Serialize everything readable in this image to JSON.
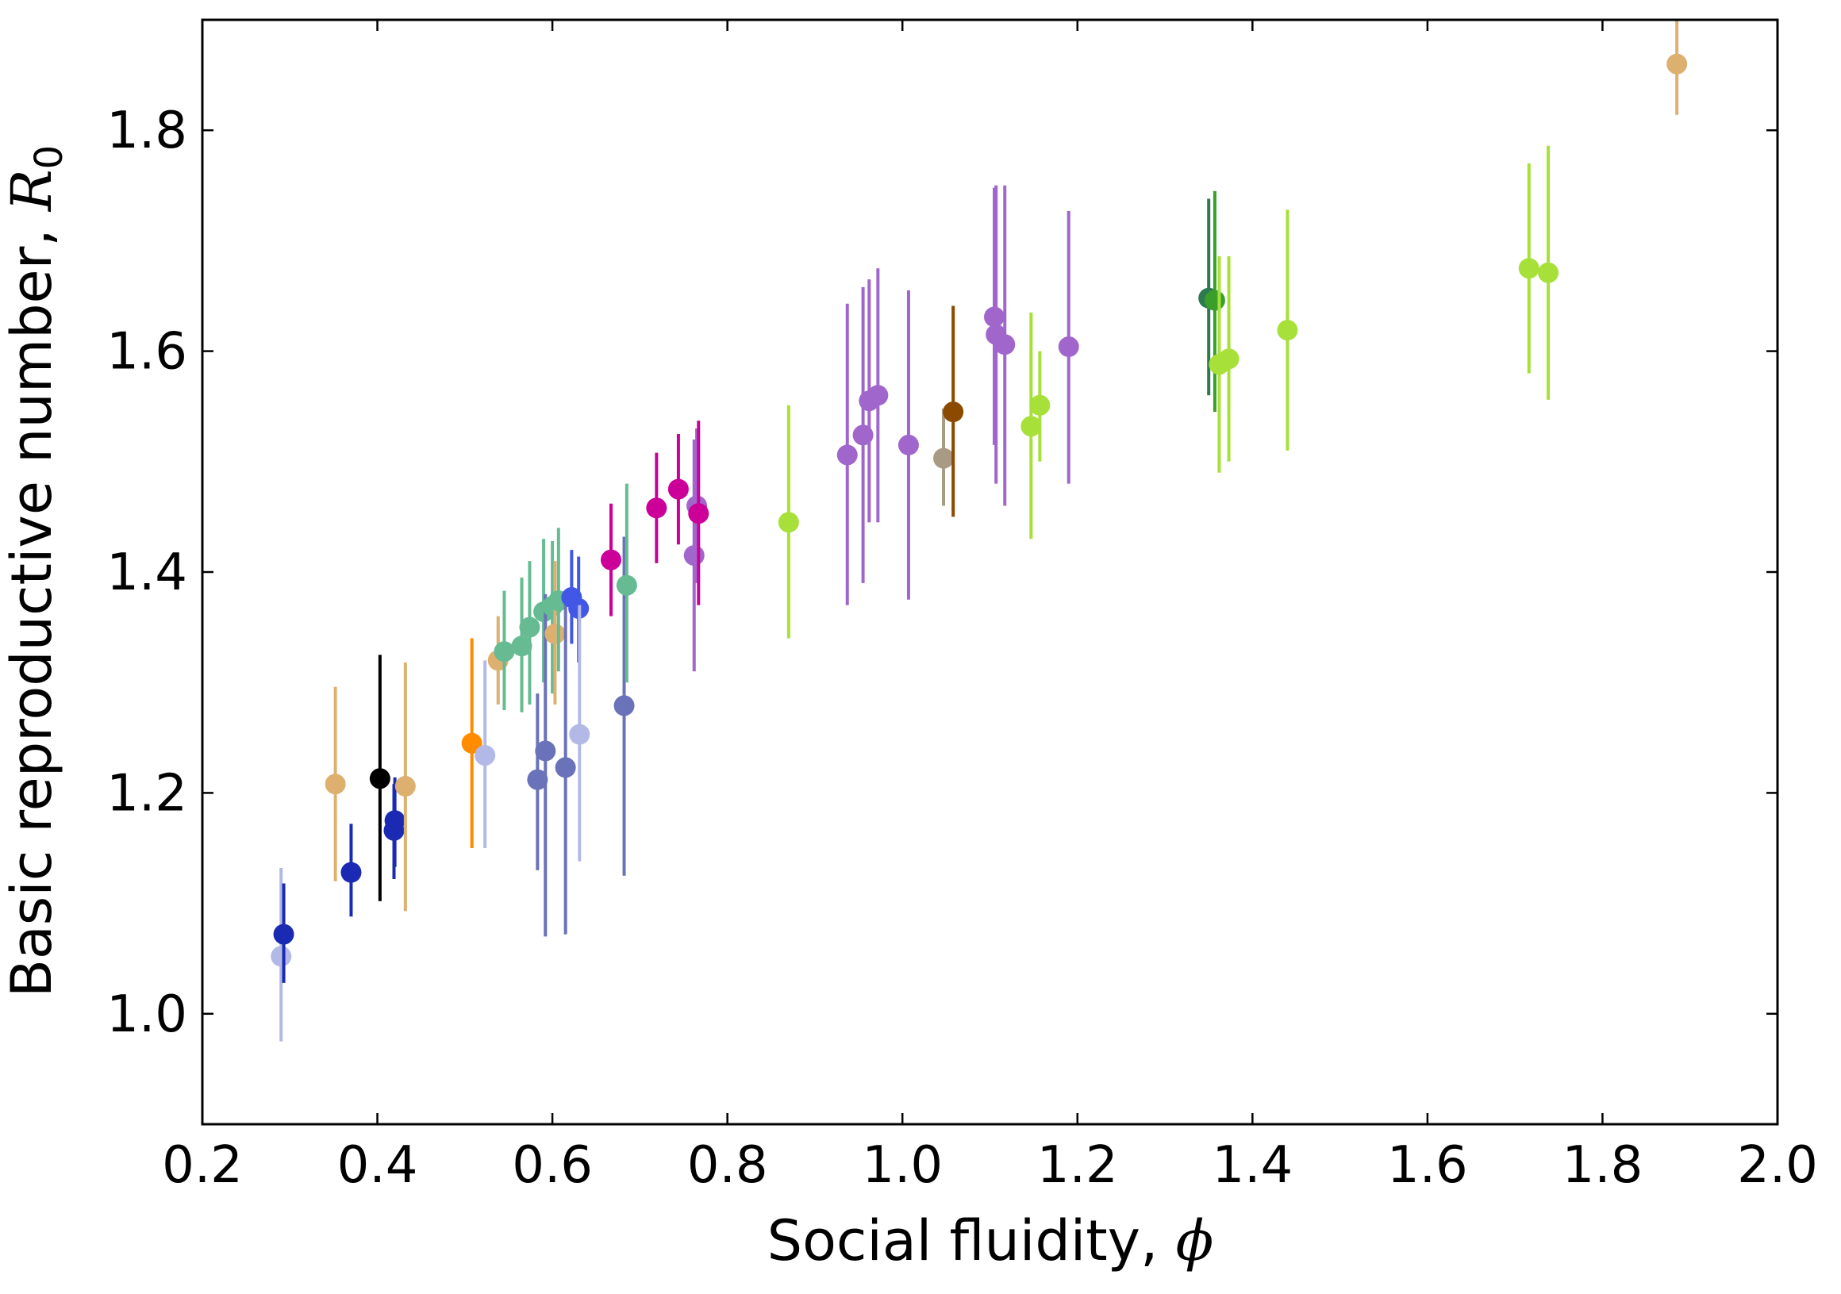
{
  "chart_data": {
    "type": "scatter",
    "xlabel": "Social fluidity, ",
    "xlabel_symbol": "ϕ",
    "ylabel": "Basic reproductive number, ",
    "ylabel_symbol": "R",
    "ylabel_subscript": "0",
    "xlim": [
      0.2,
      2.0
    ],
    "ylim": [
      0.9,
      1.9
    ],
    "xticks": [
      "0.2",
      "0.4",
      "0.6",
      "0.8",
      "1.0",
      "1.2",
      "1.4",
      "1.6",
      "1.8",
      "2.0"
    ],
    "yticks": [
      "1.0",
      "1.2",
      "1.4",
      "1.6",
      "1.8"
    ],
    "grid": false,
    "legend": "none",
    "error_bars": "vertical",
    "points": [
      {
        "x": 0.29,
        "y": 1.052,
        "lo": 0.975,
        "hi": 1.132,
        "color": "#b3b9e6"
      },
      {
        "x": 0.293,
        "y": 1.072,
        "lo": 1.028,
        "hi": 1.118,
        "color": "#1a2ab2"
      },
      {
        "x": 0.352,
        "y": 1.208,
        "lo": 1.12,
        "hi": 1.296,
        "color": "#deb070"
      },
      {
        "x": 0.37,
        "y": 1.128,
        "lo": 1.088,
        "hi": 1.172,
        "color": "#1a2ab2"
      },
      {
        "x": 0.403,
        "y": 1.213,
        "lo": 1.102,
        "hi": 1.325,
        "color": "#000000"
      },
      {
        "x": 0.42,
        "y": 1.175,
        "lo": 1.133,
        "hi": 1.214,
        "color": "#1a2ab2"
      },
      {
        "x": 0.419,
        "y": 1.166,
        "lo": 1.122,
        "hi": 1.208,
        "color": "#1a2ab2"
      },
      {
        "x": 0.432,
        "y": 1.206,
        "lo": 1.093,
        "hi": 1.318,
        "color": "#deb070"
      },
      {
        "x": 0.508,
        "y": 1.245,
        "lo": 1.15,
        "hi": 1.34,
        "color": "#ff8c00"
      },
      {
        "x": 0.523,
        "y": 1.234,
        "lo": 1.15,
        "hi": 1.32,
        "color": "#b3b9e6"
      },
      {
        "x": 0.538,
        "y": 1.32,
        "lo": 1.28,
        "hi": 1.36,
        "color": "#deb070"
      },
      {
        "x": 0.545,
        "y": 1.328,
        "lo": 1.275,
        "hi": 1.383,
        "color": "#66bb93"
      },
      {
        "x": 0.565,
        "y": 1.333,
        "lo": 1.273,
        "hi": 1.395,
        "color": "#66bb93"
      },
      {
        "x": 0.574,
        "y": 1.35,
        "lo": 1.28,
        "hi": 1.41,
        "color": "#66bb93"
      },
      {
        "x": 0.583,
        "y": 1.212,
        "lo": 1.13,
        "hi": 1.29,
        "color": "#6a72b9"
      },
      {
        "x": 0.59,
        "y": 1.364,
        "lo": 1.3,
        "hi": 1.43,
        "color": "#66bb93"
      },
      {
        "x": 0.592,
        "y": 1.238,
        "lo": 1.07,
        "hi": 1.38,
        "color": "#6a72b9"
      },
      {
        "x": 0.6,
        "y": 1.369,
        "lo": 1.29,
        "hi": 1.428,
        "color": "#66bb93"
      },
      {
        "x": 0.603,
        "y": 1.344,
        "lo": 1.28,
        "hi": 1.41,
        "color": "#deb070"
      },
      {
        "x": 0.607,
        "y": 1.374,
        "lo": 1.31,
        "hi": 1.44,
        "color": "#66bb93"
      },
      {
        "x": 0.615,
        "y": 1.223,
        "lo": 1.072,
        "hi": 1.37,
        "color": "#6a72b9"
      },
      {
        "x": 0.622,
        "y": 1.377,
        "lo": 1.335,
        "hi": 1.42,
        "color": "#4257e6"
      },
      {
        "x": 0.63,
        "y": 1.367,
        "lo": 1.318,
        "hi": 1.414,
        "color": "#4257e6"
      },
      {
        "x": 0.631,
        "y": 1.253,
        "lo": 1.138,
        "hi": 1.37,
        "color": "#b3b9e6"
      },
      {
        "x": 0.667,
        "y": 1.411,
        "lo": 1.36,
        "hi": 1.462,
        "color": "#cc0099"
      },
      {
        "x": 0.682,
        "y": 1.279,
        "lo": 1.125,
        "hi": 1.432,
        "color": "#6a72b9"
      },
      {
        "x": 0.685,
        "y": 1.388,
        "lo": 1.3,
        "hi": 1.48,
        "color": "#66bb93"
      },
      {
        "x": 0.719,
        "y": 1.458,
        "lo": 1.408,
        "hi": 1.508,
        "color": "#cc0099"
      },
      {
        "x": 0.744,
        "y": 1.475,
        "lo": 1.425,
        "hi": 1.525,
        "color": "#cc0099"
      },
      {
        "x": 0.762,
        "y": 1.415,
        "lo": 1.31,
        "hi": 1.52,
        "color": "#a066cc"
      },
      {
        "x": 0.765,
        "y": 1.46,
        "lo": 1.39,
        "hi": 1.53,
        "color": "#a066cc"
      },
      {
        "x": 0.767,
        "y": 1.453,
        "lo": 1.37,
        "hi": 1.537,
        "color": "#cc0099"
      },
      {
        "x": 0.87,
        "y": 1.445,
        "lo": 1.34,
        "hi": 1.551,
        "color": "#a8e03a"
      },
      {
        "x": 0.937,
        "y": 1.506,
        "lo": 1.37,
        "hi": 1.643,
        "color": "#a066cc"
      },
      {
        "x": 0.955,
        "y": 1.524,
        "lo": 1.39,
        "hi": 1.658,
        "color": "#a066cc"
      },
      {
        "x": 0.962,
        "y": 1.555,
        "lo": 1.445,
        "hi": 1.665,
        "color": "#a066cc"
      },
      {
        "x": 0.972,
        "y": 1.56,
        "lo": 1.445,
        "hi": 1.675,
        "color": "#a066cc"
      },
      {
        "x": 1.007,
        "y": 1.515,
        "lo": 1.375,
        "hi": 1.655,
        "color": "#a066cc"
      },
      {
        "x": 1.047,
        "y": 1.503,
        "lo": 1.46,
        "hi": 1.548,
        "color": "#a89a84"
      },
      {
        "x": 1.058,
        "y": 1.545,
        "lo": 1.45,
        "hi": 1.641,
        "color": "#8b4a00"
      },
      {
        "x": 1.105,
        "y": 1.631,
        "lo": 1.515,
        "hi": 1.748,
        "color": "#a066cc"
      },
      {
        "x": 1.107,
        "y": 1.615,
        "lo": 1.48,
        "hi": 1.75,
        "color": "#a066cc"
      },
      {
        "x": 1.117,
        "y": 1.606,
        "lo": 1.46,
        "hi": 1.75,
        "color": "#a066cc"
      },
      {
        "x": 1.147,
        "y": 1.532,
        "lo": 1.43,
        "hi": 1.635,
        "color": "#a8e03a"
      },
      {
        "x": 1.157,
        "y": 1.551,
        "lo": 1.5,
        "hi": 1.6,
        "color": "#a8e03a"
      },
      {
        "x": 1.19,
        "y": 1.604,
        "lo": 1.48,
        "hi": 1.727,
        "color": "#a066cc"
      },
      {
        "x": 1.35,
        "y": 1.648,
        "lo": 1.56,
        "hi": 1.738,
        "color": "#2d7a50"
      },
      {
        "x": 1.357,
        "y": 1.646,
        "lo": 1.545,
        "hi": 1.745,
        "color": "#3a9e2a"
      },
      {
        "x": 1.362,
        "y": 1.588,
        "lo": 1.49,
        "hi": 1.686,
        "color": "#a8e03a"
      },
      {
        "x": 1.373,
        "y": 1.593,
        "lo": 1.5,
        "hi": 1.686,
        "color": "#a8e03a"
      },
      {
        "x": 1.44,
        "y": 1.619,
        "lo": 1.51,
        "hi": 1.728,
        "color": "#a8e03a"
      },
      {
        "x": 1.716,
        "y": 1.675,
        "lo": 1.58,
        "hi": 1.77,
        "color": "#a8e03a"
      },
      {
        "x": 1.738,
        "y": 1.671,
        "lo": 1.556,
        "hi": 1.786,
        "color": "#a8e03a"
      },
      {
        "x": 1.885,
        "y": 1.86,
        "lo": 1.814,
        "hi": 1.9,
        "color": "#deb070"
      }
    ]
  }
}
